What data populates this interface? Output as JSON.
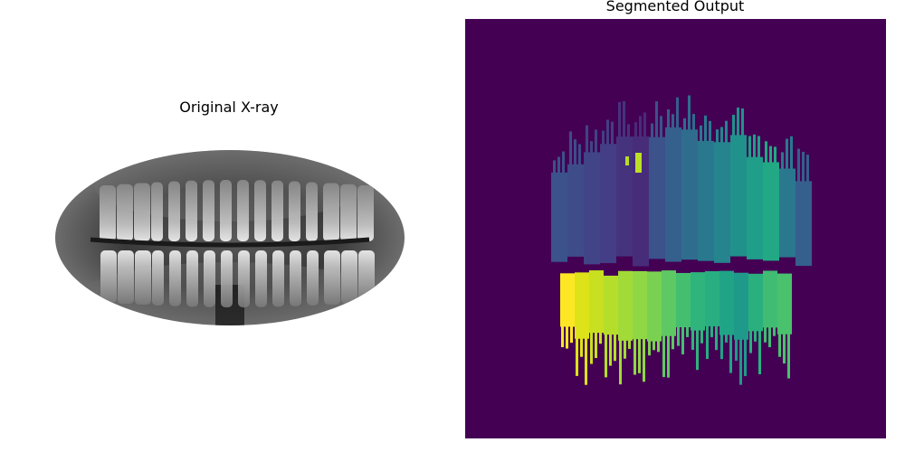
{
  "panels": {
    "left_title": "Original X-ray",
    "right_title": "Segmented Output"
  },
  "colors": {
    "page_background": "#ffffff",
    "segmentation_background": "#440154",
    "xray_dark": "#1c1c1c",
    "xray_bright": "#f2f2f2"
  },
  "icons": {
    "xray_image": "panoramic-dental-xray",
    "segmentation_image": "tooth-segmentation-mask"
  }
}
